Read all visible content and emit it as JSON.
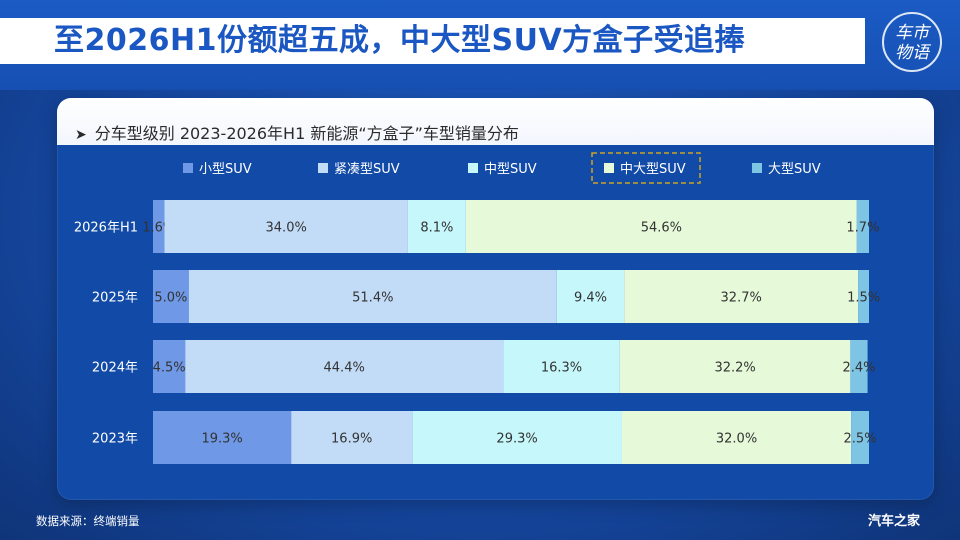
{
  "page_title": "至2026H1份额超五成，中大型SUV方盒子受追捧",
  "logo": [
    "车市",
    "物语"
  ],
  "source_note": "数据来源：终端销量",
  "watermark": "汽车之家",
  "colors": {
    "小型SUV": "#6f98e6",
    "紧凑型SUV": "#c2dcf7",
    "中型SUV": "#c6f7fb",
    "中大型SUV": "#e6f9d9",
    "大型SUV": "#7ec4e4",
    "highlight_border": "#c9a227"
  },
  "chart_data": {
    "type": "bar",
    "orientation": "horizontal",
    "stacked": true,
    "percent": true,
    "title": "分车型级别 2023-2026年H1 新能源“方盒子”车型销量分布",
    "categories": [
      "2026年H1",
      "2025年",
      "2024年",
      "2023年"
    ],
    "series": [
      {
        "name": "小型SUV",
        "values": [
          1.6,
          5.0,
          4.5,
          19.3
        ]
      },
      {
        "name": "紧凑型SUV",
        "values": [
          34.0,
          51.4,
          44.4,
          16.9
        ]
      },
      {
        "name": "中型SUV",
        "values": [
          8.1,
          9.4,
          16.3,
          29.3
        ]
      },
      {
        "name": "中大型SUV",
        "values": [
          54.6,
          32.7,
          32.2,
          32.0
        ],
        "highlighted": true
      },
      {
        "name": "大型SUV",
        "values": [
          1.7,
          1.5,
          2.4,
          2.5
        ]
      }
    ],
    "xlim": [
      0,
      100
    ],
    "legend_position": "top",
    "grid": false
  }
}
